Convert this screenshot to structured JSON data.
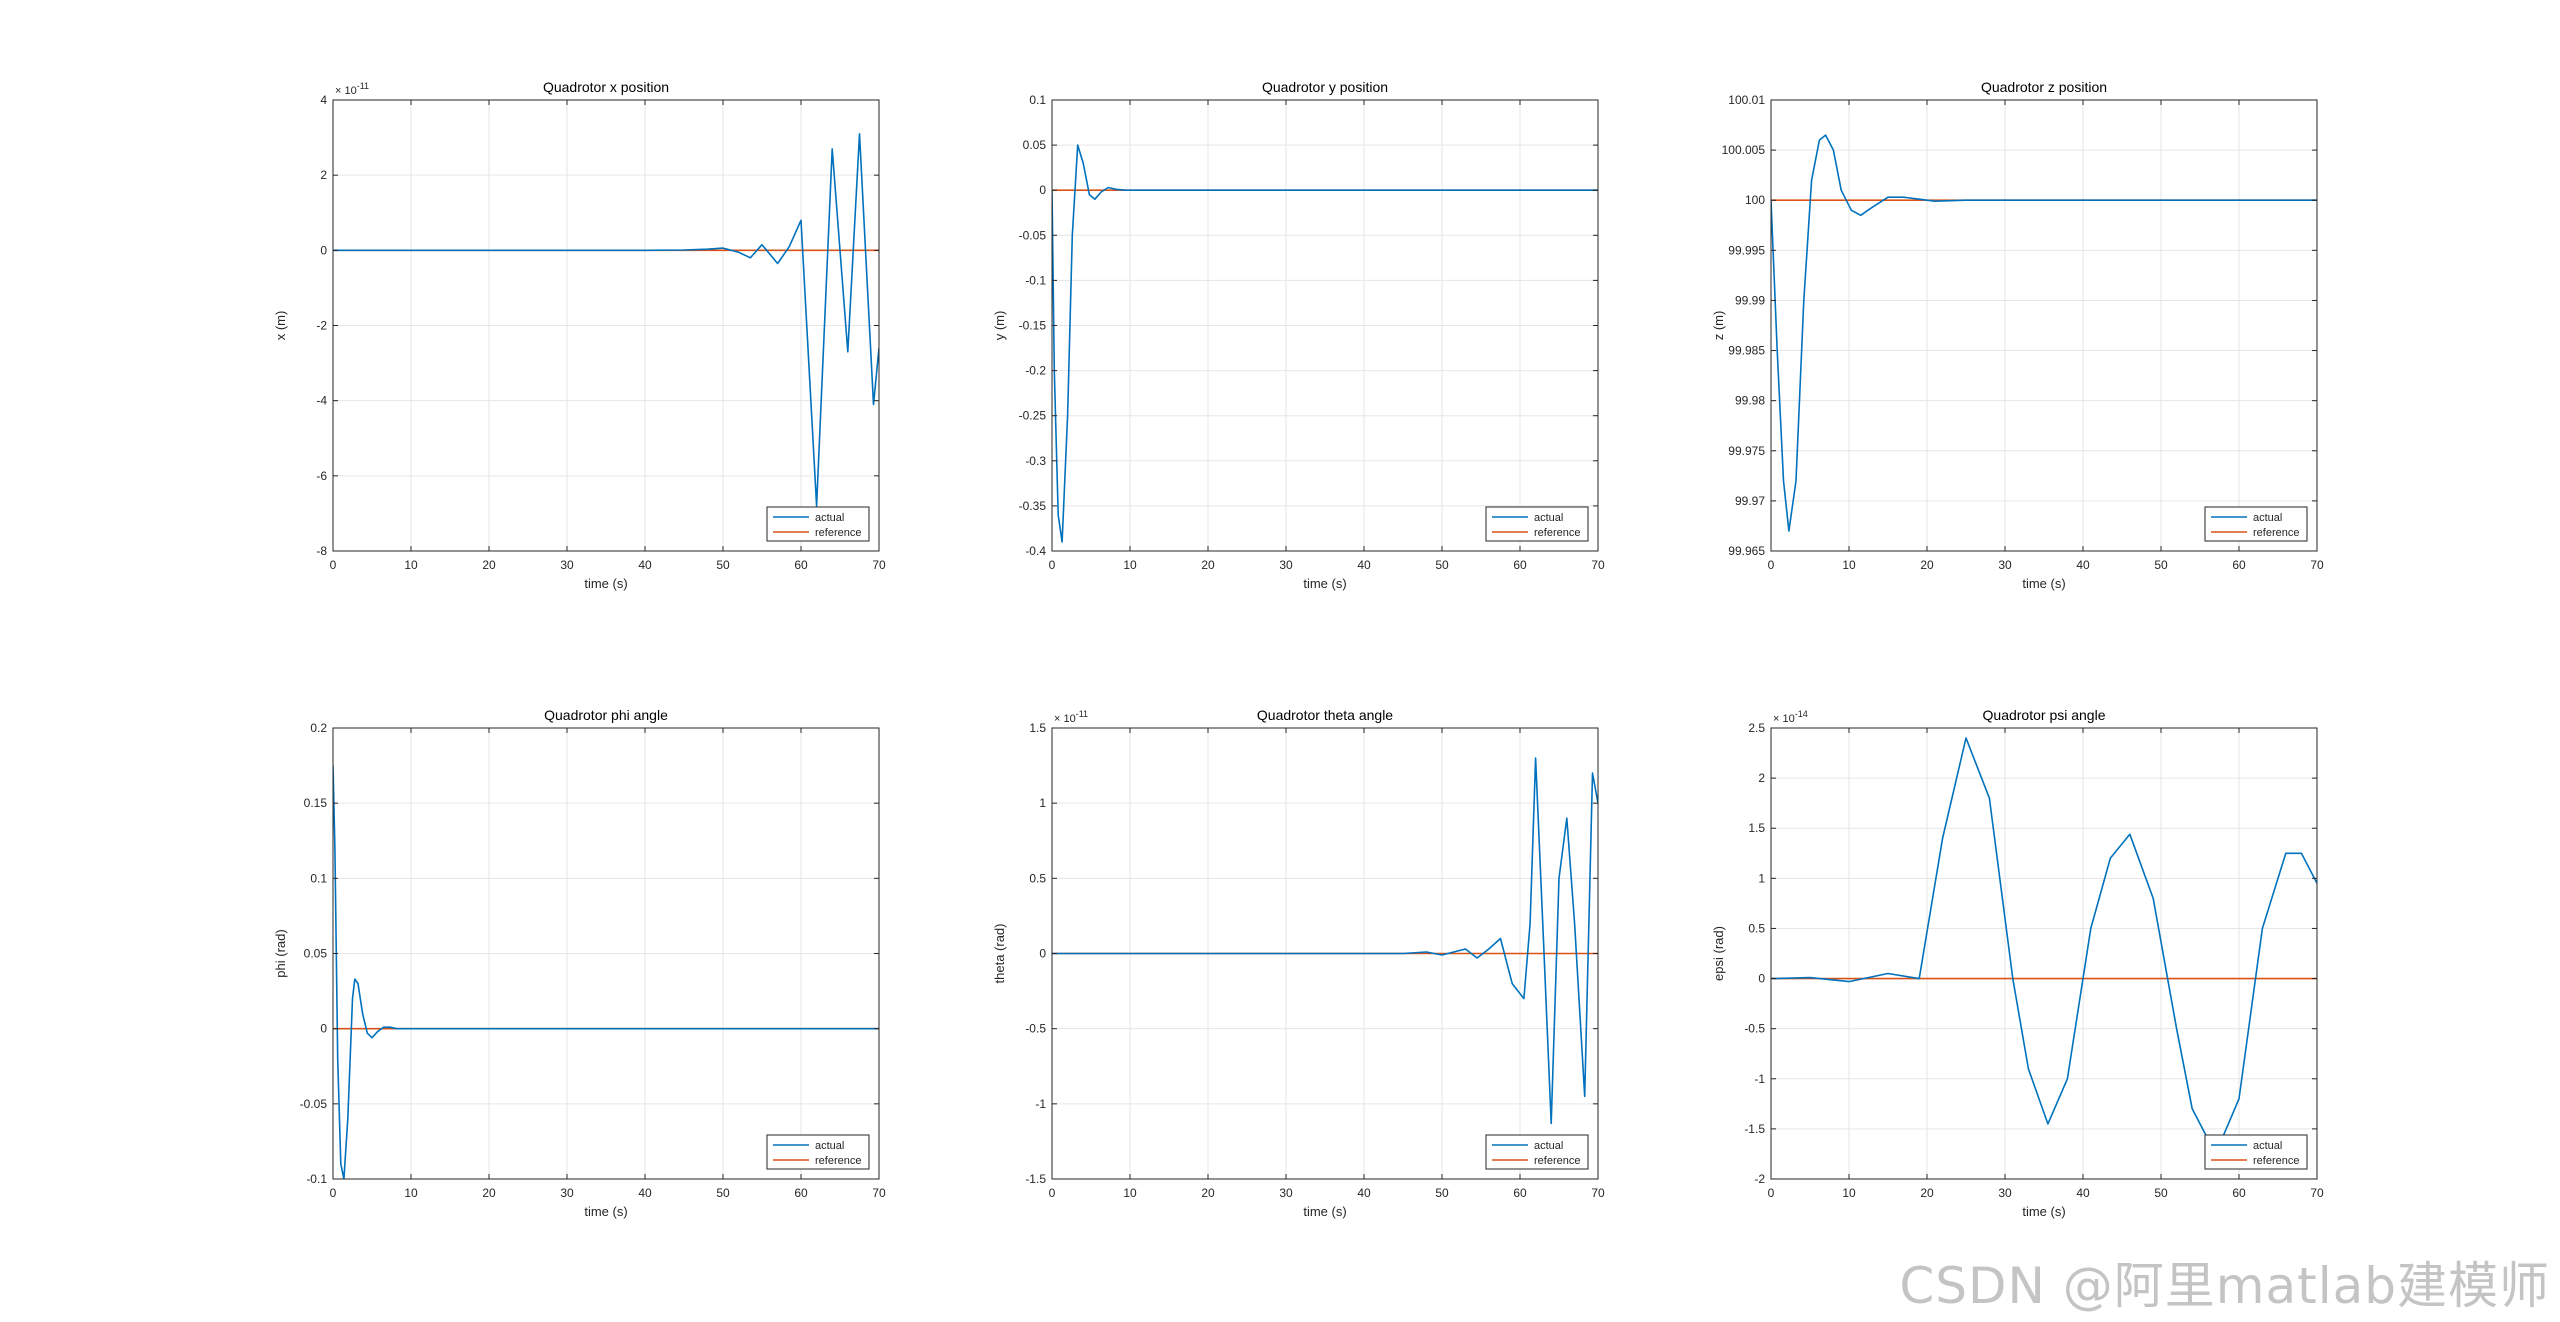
{
  "figure": {
    "watermark": "CSDN @阿里matlab建模师"
  },
  "colors": {
    "actual": "#0072BD",
    "reference": "#D95319",
    "grid": "#e6e6e6",
    "axis": "#262626",
    "legend_border": "#262626"
  },
  "chart_data": [
    {
      "type": "line",
      "title": "Quadrotor x position",
      "xlabel": "time (s)",
      "ylabel": "x (m)",
      "xlim": [
        0,
        70
      ],
      "ylim": [
        -8,
        4
      ],
      "xticks": [
        0,
        10,
        20,
        30,
        40,
        50,
        60,
        70
      ],
      "xtick_labels": [
        "0",
        "10",
        "20",
        "30",
        "40",
        "50",
        "60",
        "70"
      ],
      "yticks": [
        -8,
        -6,
        -4,
        -2,
        0,
        2,
        4
      ],
      "ytick_labels": [
        "-8",
        "-6",
        "-4",
        "-2",
        "0",
        "2",
        "4"
      ],
      "exponent_label": "× 10",
      "exponent_power": "-11",
      "grid": true,
      "legend": {
        "location": "bottom-right",
        "entries": [
          "actual",
          "reference"
        ]
      },
      "series": [
        {
          "name": "actual",
          "x": [
            0,
            40,
            45,
            48,
            50,
            52,
            53.5,
            55,
            57,
            58.5,
            60,
            62,
            64,
            66,
            67.5,
            69.3,
            70
          ],
          "y": [
            0,
            0,
            0.01,
            0.03,
            0.06,
            -0.05,
            -0.2,
            0.15,
            -0.35,
            0.1,
            0.8,
            -6.8,
            2.7,
            -2.7,
            3.1,
            -4.1,
            -2.6
          ]
        },
        {
          "name": "reference",
          "x": [
            0,
            70
          ],
          "y": [
            0,
            0
          ]
        }
      ]
    },
    {
      "type": "line",
      "title": "Quadrotor y position",
      "xlabel": "time (s)",
      "ylabel": "y (m)",
      "xlim": [
        0,
        70
      ],
      "ylim": [
        -0.4,
        0.1
      ],
      "xticks": [
        0,
        10,
        20,
        30,
        40,
        50,
        60,
        70
      ],
      "xtick_labels": [
        "0",
        "10",
        "20",
        "30",
        "40",
        "50",
        "60",
        "70"
      ],
      "yticks": [
        -0.4,
        -0.35,
        -0.3,
        -0.25,
        -0.2,
        -0.15,
        -0.1,
        -0.05,
        0,
        0.05,
        0.1
      ],
      "ytick_labels": [
        "-0.4",
        "-0.35",
        "-0.3",
        "-0.25",
        "-0.2",
        "-0.15",
        "-0.1",
        "-0.05",
        "0",
        "0.05",
        "0.1"
      ],
      "grid": true,
      "legend": {
        "location": "bottom-right",
        "entries": [
          "actual",
          "reference"
        ]
      },
      "series": [
        {
          "name": "actual",
          "x": [
            0,
            0.3,
            0.8,
            1.3,
            2.0,
            2.6,
            3.3,
            4.0,
            4.8,
            5.5,
            6.3,
            7.2,
            8.2,
            9.5,
            12,
            70
          ],
          "y": [
            0,
            -0.2,
            -0.36,
            -0.39,
            -0.25,
            -0.05,
            0.05,
            0.03,
            -0.005,
            -0.01,
            -0.002,
            0.003,
            0.001,
            0,
            0,
            0
          ]
        },
        {
          "name": "reference",
          "x": [
            0,
            70
          ],
          "y": [
            0,
            0
          ]
        }
      ]
    },
    {
      "type": "line",
      "title": "Quadrotor z position",
      "xlabel": "time (s)",
      "ylabel": "z (m)",
      "xlim": [
        0,
        70
      ],
      "ylim": [
        99.965,
        100.01
      ],
      "xticks": [
        0,
        10,
        20,
        30,
        40,
        50,
        60,
        70
      ],
      "xtick_labels": [
        "0",
        "10",
        "20",
        "30",
        "40",
        "50",
        "60",
        "70"
      ],
      "yticks": [
        99.965,
        99.97,
        99.975,
        99.98,
        99.985,
        99.99,
        99.995,
        100,
        100.005,
        100.01
      ],
      "ytick_labels": [
        "99.965",
        "99.97",
        "99.975",
        "99.98",
        "99.985",
        "99.99",
        "99.995",
        "100",
        "100.005",
        "100.01"
      ],
      "grid": true,
      "legend": {
        "location": "bottom-right",
        "entries": [
          "actual",
          "reference"
        ]
      },
      "series": [
        {
          "name": "actual",
          "x": [
            0,
            0.8,
            1.6,
            2.3,
            3.2,
            4.2,
            5.2,
            6.2,
            7.0,
            8.0,
            9.0,
            10.3,
            11.5,
            13,
            15,
            17,
            19,
            21,
            25,
            30,
            70
          ],
          "y": [
            100,
            99.985,
            99.972,
            99.967,
            99.972,
            99.99,
            100.002,
            100.006,
            100.0065,
            100.005,
            100.001,
            99.999,
            99.9985,
            99.9993,
            100.0003,
            100.0003,
            100.0001,
            99.9999,
            100,
            100,
            100
          ]
        },
        {
          "name": "reference",
          "x": [
            0,
            70
          ],
          "y": [
            100,
            100
          ]
        }
      ]
    },
    {
      "type": "line",
      "title": "Quadrotor phi angle",
      "xlabel": "time (s)",
      "ylabel": "phi (rad)",
      "xlim": [
        0,
        70
      ],
      "ylim": [
        -0.1,
        0.2
      ],
      "xticks": [
        0,
        10,
        20,
        30,
        40,
        50,
        60,
        70
      ],
      "xtick_labels": [
        "0",
        "10",
        "20",
        "30",
        "40",
        "50",
        "60",
        "70"
      ],
      "yticks": [
        -0.1,
        -0.05,
        0,
        0.05,
        0.1,
        0.15,
        0.2
      ],
      "ytick_labels": [
        "-0.1",
        "-0.05",
        "0",
        "0.05",
        "0.1",
        "0.15",
        "0.2"
      ],
      "grid": true,
      "legend": {
        "location": "bottom-right",
        "entries": [
          "actual",
          "reference"
        ]
      },
      "series": [
        {
          "name": "actual",
          "x": [
            0,
            0.25,
            0.6,
            1.0,
            1.4,
            1.9,
            2.5,
            2.8,
            3.2,
            3.8,
            4.4,
            5.0,
            5.7,
            6.5,
            7.3,
            8.2,
            10,
            70
          ],
          "y": [
            0.175,
            0.12,
            -0.02,
            -0.09,
            -0.1,
            -0.06,
            0.02,
            0.033,
            0.03,
            0.01,
            -0.003,
            -0.006,
            -0.002,
            0.001,
            0.001,
            0,
            0,
            0
          ]
        },
        {
          "name": "reference",
          "x": [
            0,
            70
          ],
          "y": [
            0,
            0
          ]
        }
      ]
    },
    {
      "type": "line",
      "title": "Quadrotor theta angle",
      "xlabel": "time (s)",
      "ylabel": "theta (rad)",
      "xlim": [
        0,
        70
      ],
      "ylim": [
        -1.5,
        1.5
      ],
      "xticks": [
        0,
        10,
        20,
        30,
        40,
        50,
        60,
        70
      ],
      "xtick_labels": [
        "0",
        "10",
        "20",
        "30",
        "40",
        "50",
        "60",
        "70"
      ],
      "yticks": [
        -1.5,
        -1,
        -0.5,
        0,
        0.5,
        1,
        1.5
      ],
      "ytick_labels": [
        "-1.5",
        "-1",
        "-0.5",
        "0",
        "0.5",
        "1",
        "1.5"
      ],
      "exponent_label": "× 10",
      "exponent_power": "-11",
      "grid": true,
      "legend": {
        "location": "bottom-right",
        "entries": [
          "actual",
          "reference"
        ]
      },
      "series": [
        {
          "name": "actual",
          "x": [
            0,
            45,
            48,
            50,
            51.5,
            53,
            54.5,
            56,
            57.5,
            59,
            60.5,
            61.3,
            62,
            63,
            64,
            65,
            66,
            67,
            68.3,
            69.3,
            70
          ],
          "y": [
            0,
            0,
            0.01,
            -0.01,
            0.01,
            0.03,
            -0.03,
            0.03,
            0.1,
            -0.2,
            -0.3,
            0.2,
            1.3,
            0.1,
            -1.13,
            0.5,
            0.9,
            0.2,
            -0.95,
            1.2,
            1.0
          ]
        },
        {
          "name": "reference",
          "x": [
            0,
            70
          ],
          "y": [
            0,
            0
          ]
        }
      ]
    },
    {
      "type": "line",
      "title": "Quadrotor psi angle",
      "xlabel": "time (s)",
      "ylabel": "epsi (rad)",
      "xlim": [
        0,
        70
      ],
      "ylim": [
        -2,
        2.5
      ],
      "xticks": [
        0,
        10,
        20,
        30,
        40,
        50,
        60,
        70
      ],
      "xtick_labels": [
        "0",
        "10",
        "20",
        "30",
        "40",
        "50",
        "60",
        "70"
      ],
      "yticks": [
        -2,
        -1.5,
        -1,
        -0.5,
        0,
        0.5,
        1,
        1.5,
        2,
        2.5
      ],
      "ytick_labels": [
        "-2",
        "-1.5",
        "-1",
        "-0.5",
        "0",
        "0.5",
        "1",
        "1.5",
        "2",
        "2.5"
      ],
      "exponent_label": "× 10",
      "exponent_power": "-14",
      "grid": true,
      "legend": {
        "location": "bottom-right",
        "entries": [
          "actual",
          "reference"
        ]
      },
      "series": [
        {
          "name": "actual",
          "x": [
            0,
            5,
            10,
            15,
            19,
            22,
            25,
            28,
            31,
            33,
            35.5,
            38,
            41,
            43.5,
            46,
            49,
            52,
            54,
            57,
            60,
            63,
            66,
            68,
            70
          ],
          "y": [
            0,
            0.01,
            -0.03,
            0.05,
            0,
            1.4,
            2.4,
            1.8,
            0,
            -0.9,
            -1.45,
            -1.0,
            0.5,
            1.2,
            1.44,
            0.8,
            -0.5,
            -1.3,
            -1.75,
            -1.2,
            0.5,
            1.25,
            1.25,
            0.95
          ]
        },
        {
          "name": "reference",
          "x": [
            0,
            70
          ],
          "y": [
            0,
            0
          ]
        }
      ]
    }
  ]
}
